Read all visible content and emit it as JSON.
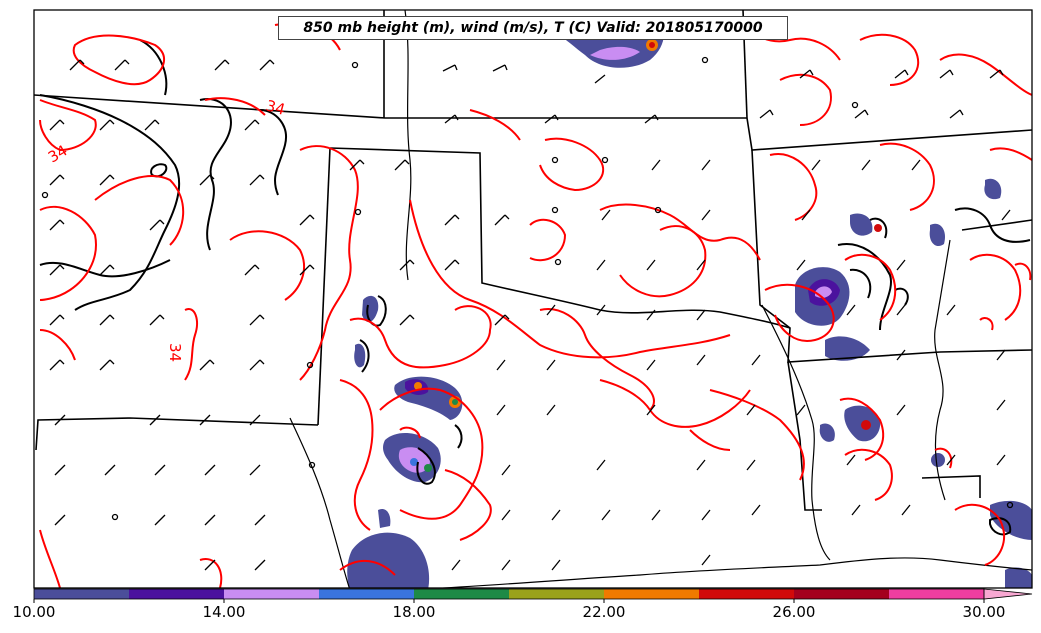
{
  "title": "850 mb height (m), wind (m/s), T (C) Valid: 201805170000",
  "contour_labels": [
    "34",
    "34",
    "34"
  ],
  "colorbar": {
    "tick_labels": [
      "10.00",
      "14.00",
      "18.00",
      "22.00",
      "26.00",
      "30.00"
    ],
    "min": 10,
    "max": 31,
    "extend": "max",
    "bins": [
      {
        "from": 10,
        "to": 12,
        "color": "#4b4e9a"
      },
      {
        "from": 12,
        "to": 14,
        "color": "#4b129e"
      },
      {
        "from": 14,
        "to": 16,
        "color": "#c98df2"
      },
      {
        "from": 16,
        "to": 18,
        "color": "#3a74de"
      },
      {
        "from": 18,
        "to": 20,
        "color": "#1e8a46"
      },
      {
        "from": 20,
        "to": 22,
        "color": "#9aa21a"
      },
      {
        "from": 22,
        "to": 24,
        "color": "#f07a00"
      },
      {
        "from": 24,
        "to": 26,
        "color": "#d20a0a"
      },
      {
        "from": 26,
        "to": 28,
        "color": "#a4001e"
      },
      {
        "from": 28,
        "to": 30,
        "color": "#ee3ea0"
      },
      {
        "from": 30,
        "to": 31,
        "color": "#f8a8d2"
      }
    ]
  },
  "colors": {
    "temperature_contour": "#ff0000",
    "height_contour": "#000000",
    "state_borders": "#000000"
  }
}
